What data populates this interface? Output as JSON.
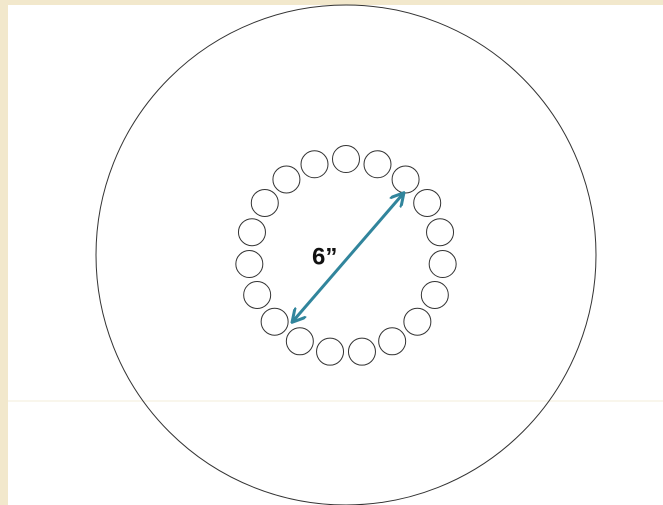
{
  "label": "6”"
}
